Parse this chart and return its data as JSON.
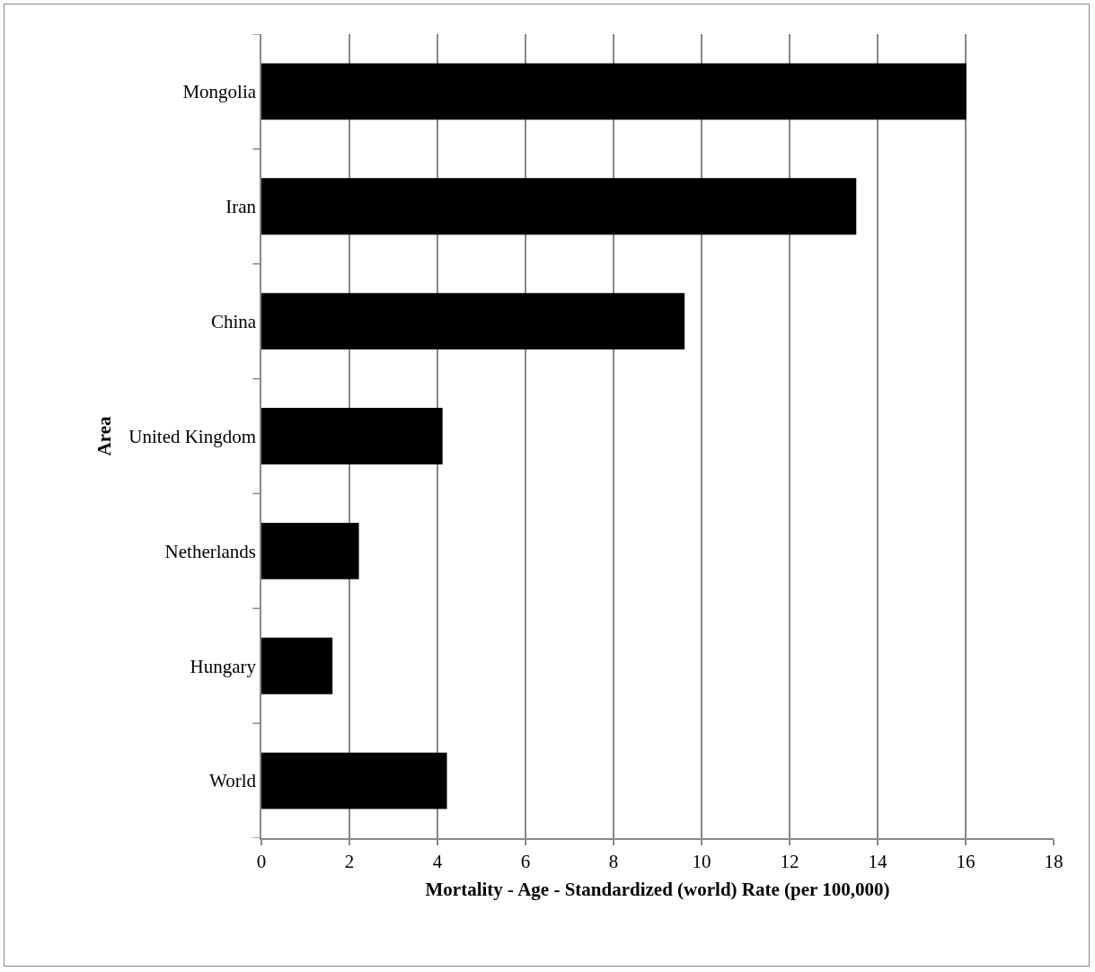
{
  "chart_data": {
    "type": "bar",
    "orientation": "horizontal",
    "categories": [
      "Mongolia",
      "Iran",
      "China",
      "United Kingdom",
      "Netherlands",
      "Hungary",
      "World"
    ],
    "values": [
      16.0,
      13.5,
      9.6,
      4.1,
      2.2,
      1.6,
      4.2
    ],
    "color": "#000000",
    "xlabel": "Mortality - Age - Standardized (world) Rate (per 100,000)",
    "ylabel": "Area",
    "xlim": [
      0,
      18
    ],
    "xticks": [
      0,
      2,
      4,
      6,
      8,
      10,
      12,
      14,
      16,
      18
    ],
    "grid": "x"
  }
}
